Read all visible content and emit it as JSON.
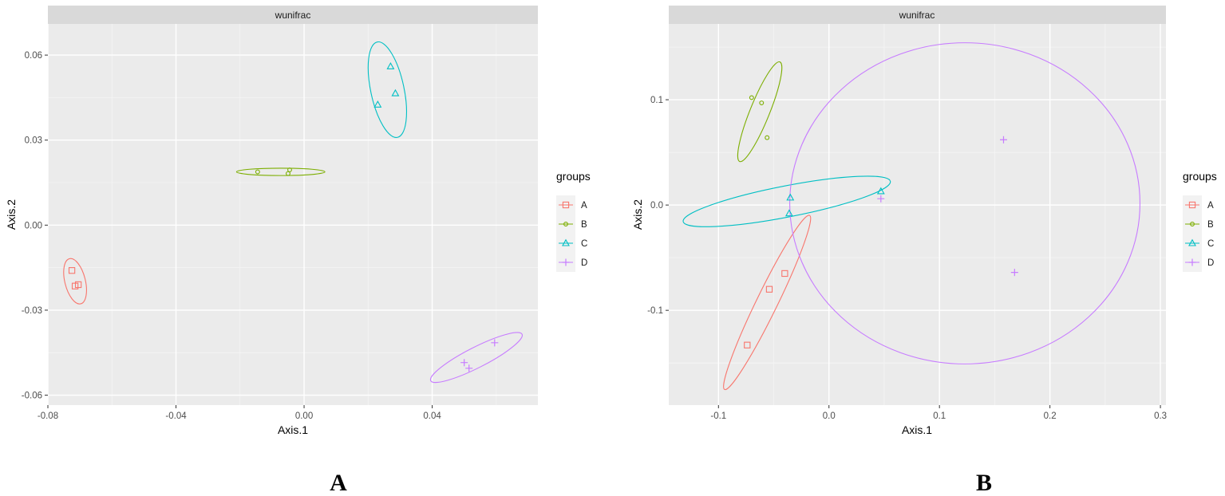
{
  "colors": {
    "A": "#F8766D",
    "B": "#7CAE00",
    "C": "#00BFC4",
    "D": "#C77CFF"
  },
  "chart_data": [
    {
      "type": "scatter",
      "panel_label": "A",
      "title": "wunifrac",
      "xlabel": "Axis.1",
      "ylabel": "Axis.2",
      "xlim": [
        -0.08,
        0.073
      ],
      "ylim": [
        -0.0635,
        0.071
      ],
      "xticks": [
        -0.08,
        -0.04,
        0.0,
        0.04
      ],
      "xtick_labels": [
        "-0.08",
        "-0.04",
        "0.00",
        "0.04"
      ],
      "yticks": [
        0.06,
        0.03,
        0.0,
        -0.03,
        -0.06
      ],
      "ytick_labels": [
        "0.06",
        "0.03",
        "0.00",
        "-0.03",
        "-0.06"
      ],
      "grid": true,
      "legend": {
        "title": "groups",
        "position": "right",
        "entries": [
          "A",
          "B",
          "C",
          "D"
        ]
      },
      "series": [
        {
          "name": "A",
          "shape": "square",
          "points": [
            [
              -0.0725,
              -0.016
            ],
            [
              -0.0715,
              -0.0215
            ],
            [
              -0.0705,
              -0.021
            ]
          ],
          "ellipse": {
            "cx": -0.0715,
            "cy": -0.0198,
            "rx": 0.0032,
            "ry": 0.0082,
            "angle": -14
          }
        },
        {
          "name": "B",
          "shape": "circle",
          "points": [
            [
              -0.0145,
              0.0188
            ],
            [
              -0.0045,
              0.0195
            ],
            [
              -0.005,
              0.0182
            ]
          ],
          "ellipse": {
            "cx": -0.0073,
            "cy": 0.0188,
            "rx": 0.0138,
            "ry": 0.0013,
            "angle": 0
          }
        },
        {
          "name": "C",
          "shape": "triangle",
          "points": [
            [
              0.027,
              0.056
            ],
            [
              0.0285,
              0.0465
            ],
            [
              0.023,
              0.0425
            ]
          ],
          "ellipse": {
            "cx": 0.026,
            "cy": 0.0478,
            "rx": 0.0052,
            "ry": 0.0172,
            "angle": -12
          }
        },
        {
          "name": "D",
          "shape": "plus",
          "points": [
            [
              0.05,
              -0.0485
            ],
            [
              0.0515,
              -0.0505
            ],
            [
              0.0595,
              -0.0415
            ]
          ],
          "ellipse": {
            "cx": 0.0538,
            "cy": -0.0467,
            "rx": 0.016,
            "ry": 0.0036,
            "angle": -27
          }
        }
      ]
    },
    {
      "type": "scatter",
      "panel_label": "B",
      "title": "wunifrac",
      "xlabel": "Axis.1",
      "ylabel": "Axis.2",
      "xlim": [
        -0.145,
        0.305
      ],
      "ylim": [
        -0.19,
        0.172
      ],
      "xticks": [
        -0.1,
        0.0,
        0.1,
        0.2,
        0.3
      ],
      "xtick_labels": [
        "-0.1",
        "0.0",
        "0.1",
        "0.2",
        "0.3"
      ],
      "yticks": [
        0.1,
        0.0,
        -0.1
      ],
      "ytick_labels": [
        "0.1",
        "0.0",
        "-0.1"
      ],
      "grid": true,
      "legend": {
        "title": "groups",
        "position": "right",
        "entries": [
          "A",
          "B",
          "C",
          "D"
        ]
      },
      "series": [
        {
          "name": "A",
          "shape": "square",
          "points": [
            [
              -0.04,
              -0.065
            ],
            [
              -0.054,
              -0.08
            ],
            [
              -0.074,
              -0.133
            ]
          ],
          "ellipse": {
            "cx": -0.056,
            "cy": -0.0925,
            "rx": 0.0095,
            "ry": 0.092,
            "angle": 26
          }
        },
        {
          "name": "B",
          "shape": "circle",
          "points": [
            [
              -0.07,
              0.102
            ],
            [
              -0.061,
              0.097
            ],
            [
              -0.056,
              0.064
            ]
          ],
          "ellipse": {
            "cx": -0.0626,
            "cy": 0.0886,
            "rx": 0.0088,
            "ry": 0.051,
            "angle": 22
          }
        },
        {
          "name": "C",
          "shape": "triangle",
          "points": [
            [
              -0.035,
              0.007
            ],
            [
              -0.036,
              -0.008
            ],
            [
              0.047,
              0.013
            ]
          ],
          "ellipse": {
            "cx": -0.0382,
            "cy": 0.0034,
            "rx": 0.0955,
            "ry": 0.0148,
            "angle": -11
          }
        },
        {
          "name": "D",
          "shape": "plus",
          "points": [
            [
              0.047,
              0.006
            ],
            [
              0.158,
              0.062
            ],
            [
              0.168,
              -0.064
            ]
          ],
          "ellipse": {
            "cx": 0.123,
            "cy": 0.0016,
            "rx": 0.1585,
            "ry": 0.1525,
            "angle": 0
          }
        }
      ]
    }
  ]
}
